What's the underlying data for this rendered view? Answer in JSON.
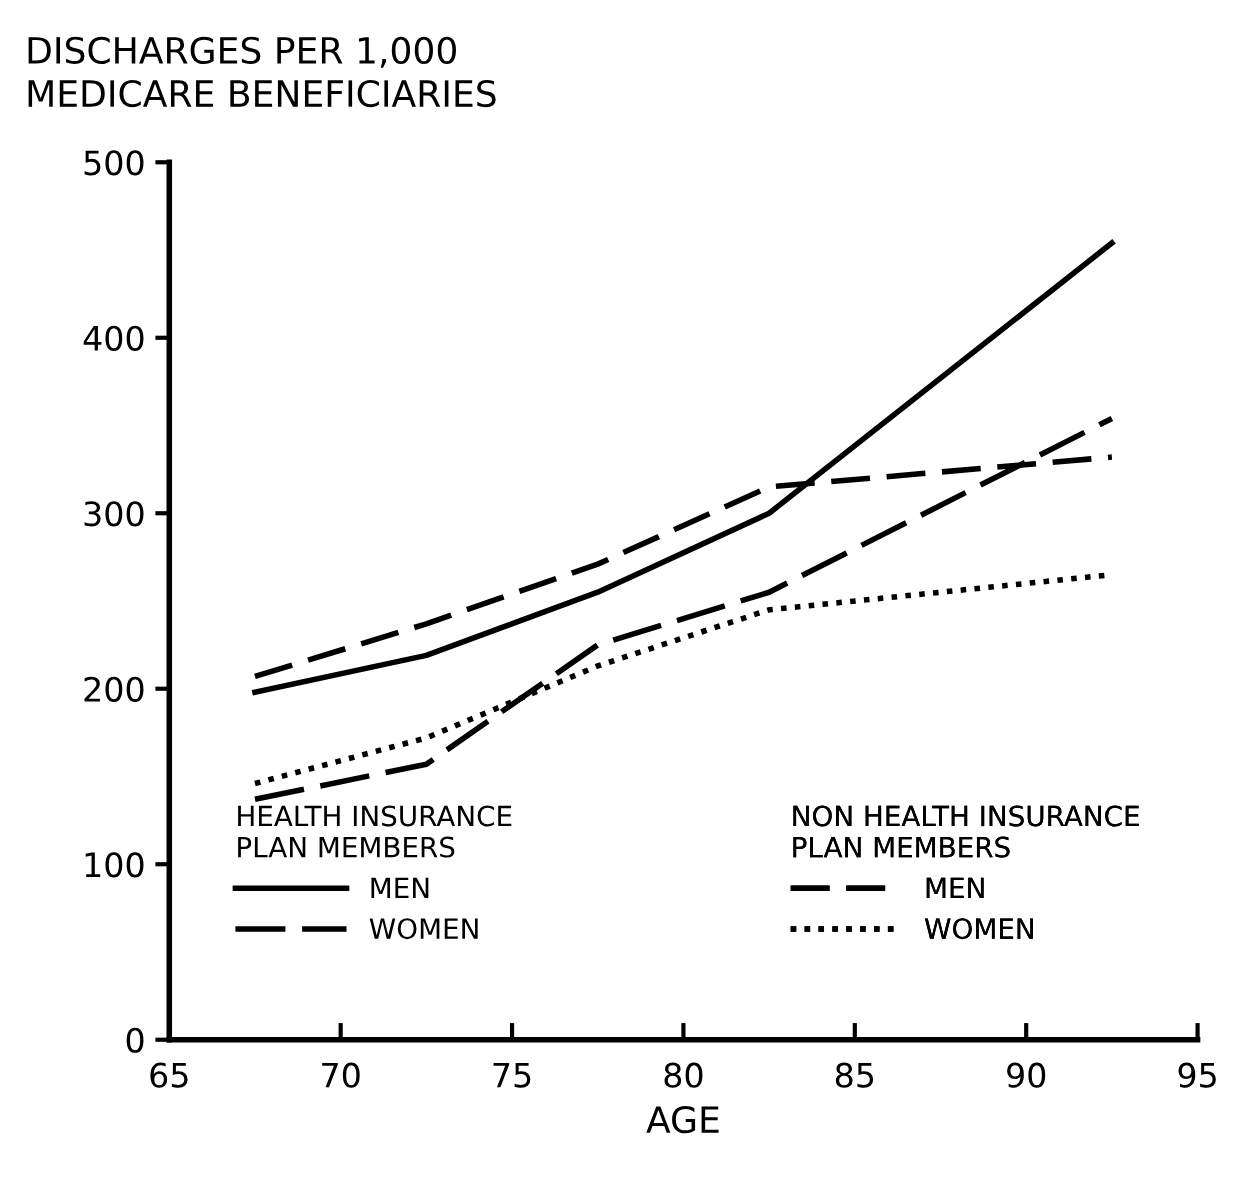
{
  "chart_data": {
    "type": "line",
    "ylabel": "DISCHARGES PER 1,000\nMEDICARE BENEFICIARIES",
    "xlabel": "AGE",
    "x": [
      67.5,
      72.5,
      77.5,
      82.5,
      92.5
    ],
    "series": [
      {
        "name": "MEN",
        "color": "#000000",
        "line_style": "solid",
        "values": [
          198,
          219,
          255,
          300,
          454
        ]
      },
      {
        "name": "WOMEN",
        "color": "#000000",
        "line_style": "dashed",
        "values": [
          137,
          157,
          225,
          255,
          354
        ]
      },
      {
        "name": "MEN",
        "color": "#000000",
        "line_style": "dashdot",
        "values": [
          207,
          237,
          271,
          315,
          332
        ]
      },
      {
        "name": "WOMEN",
        "color": "#000000",
        "line_style": "dotted",
        "values": [
          146,
          172,
          213,
          245,
          265
        ]
      }
    ],
    "annotations": [
      "HEALTH INSURANCE\nPLAN MEMBERS",
      "NON HEALTH INSURANCE\nPLAN MEMBERS"
    ],
    "legend": "bottom",
    "xlim": [
      65,
      95
    ],
    "ylim": [
      0,
      500
    ],
    "xticks": [
      65,
      70,
      75,
      80,
      85,
      90,
      95
    ],
    "yticks": [
      0,
      100,
      200,
      300,
      400,
      500
    ],
    "grid": false,
    "marker": "none"
  }
}
